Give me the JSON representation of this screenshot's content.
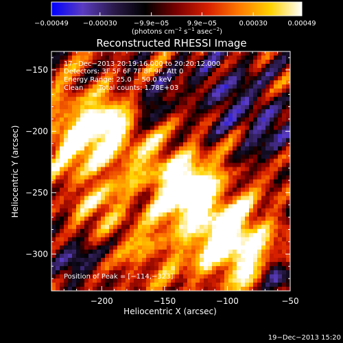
{
  "chart_data": {
    "type": "heatmap",
    "title": "Reconstructed RHESSI Image",
    "xlabel": "Heliocentric X (arcsec)",
    "ylabel": "Heliocentric Y (arcsec)",
    "xlim": [
      -240,
      -50
    ],
    "ylim": [
      -330,
      -135
    ],
    "x_ticks": [
      -200,
      -150,
      -100,
      -50
    ],
    "x_tick_labels": [
      "−200",
      "−150",
      "−100",
      "−50"
    ],
    "y_ticks": [
      -150,
      -200,
      -250,
      -300
    ],
    "y_tick_labels": [
      "−150",
      "−200",
      "−250",
      "−300"
    ],
    "colorbar": {
      "range": [
        -0.00049,
        0.00049
      ],
      "tick_values": [
        -0.00049,
        -0.0003,
        -9.9e-05,
        9.9e-05,
        0.0003,
        0.00049
      ],
      "tick_labels": [
        "−0.00049",
        "−0.00030",
        "−9.9e−05",
        "9.9e−05",
        "0.00030",
        "0.00049"
      ],
      "colors": [
        "#0000ff",
        "#5a3cc0",
        "#2a1a4a",
        "#000000",
        "#7a0000",
        "#d82000",
        "#ff7a00",
        "#ffd200",
        "#ffffff"
      ]
    },
    "units": {
      "prefix": "(photons cm",
      "sup1": "−2",
      "mid": " s",
      "sup2": "−1",
      "mid2": " asec",
      "sup3": "−2",
      "suffix": ")"
    },
    "annotations": {
      "time_range": "17−Dec−2013 20:19:16.000 to 20:20:12.000",
      "detectors": "Detectors: 3F 5F 6F 7F 8F 9F, Att 0",
      "energy": "Energy Range: 25.0 − 50.0 keV",
      "method": "Clean",
      "counts": "Total counts: 1.78E+03",
      "peak": "Position of Peak = [−114,−323]"
    },
    "peak_position": [
      -114,
      -323
    ],
    "timestamp": "19−Dec−2013 15:20"
  }
}
